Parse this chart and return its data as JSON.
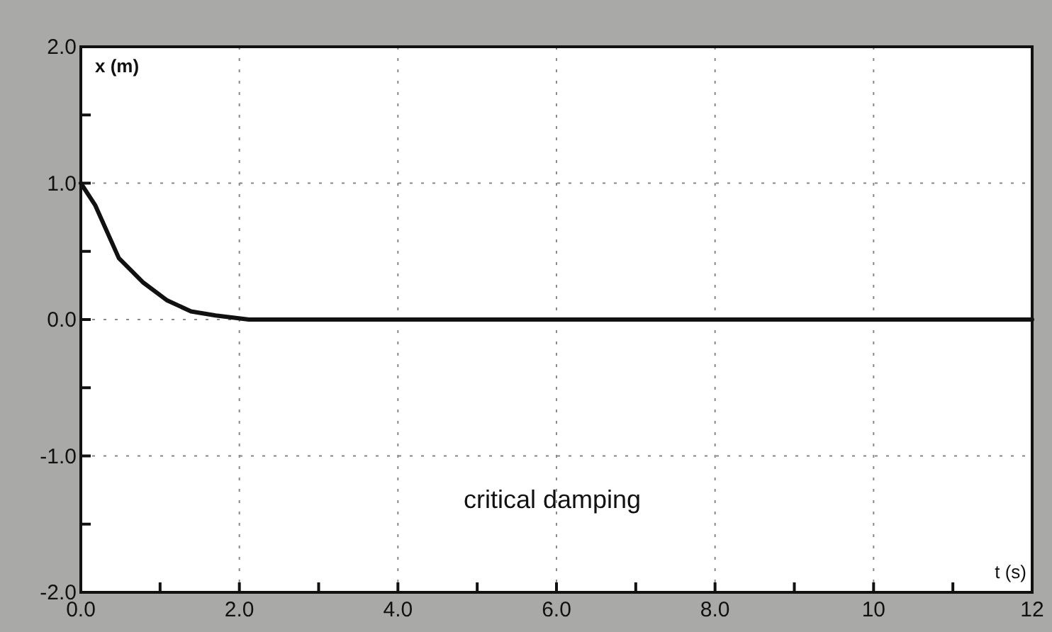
{
  "chart_data": {
    "type": "line",
    "xlabel": "t (s)",
    "ylabel": "x (m)",
    "x": [
      0,
      0.18,
      0.48,
      0.79,
      1.09,
      1.39,
      1.7,
      2.12,
      3,
      4,
      6,
      8,
      10,
      12
    ],
    "series": [
      {
        "color": "#111111",
        "values": [
          1,
          0.84,
          0.45,
          0.27,
          0.14,
          0.06,
          0.03,
          0,
          0,
          0,
          0,
          0,
          0,
          0
        ]
      }
    ],
    "xlim": [
      0,
      12
    ],
    "ylim": [
      -2,
      2
    ],
    "xticks": [
      {
        "value": 0,
        "label": "0.0"
      },
      {
        "value": 1,
        "label": null
      },
      {
        "value": 2,
        "label": "2.0"
      },
      {
        "value": 3,
        "label": null
      },
      {
        "value": 4,
        "label": "4.0"
      },
      {
        "value": 5,
        "label": null
      },
      {
        "value": 6,
        "label": "6.0"
      },
      {
        "value": 7,
        "label": null
      },
      {
        "value": 8,
        "label": "8.0"
      },
      {
        "value": 9,
        "label": null
      },
      10,
      {
        "value": 11,
        "label": null
      },
      12
    ],
    "yticks": [
      {
        "value": -2,
        "label": "-2.0"
      },
      {
        "value": -1.5,
        "label": null
      },
      {
        "value": -1,
        "label": "-1.0"
      },
      {
        "value": -0.5,
        "label": null
      },
      {
        "value": 0,
        "label": "0.0"
      },
      {
        "value": 0.5,
        "label": null
      },
      {
        "value": 1,
        "label": "1.0"
      },
      {
        "value": 1.5,
        "label": null
      },
      {
        "value": 2,
        "label": "2.0"
      }
    ],
    "grid": true,
    "line_style": "solid",
    "marker": "none",
    "annotations": [
      "critical damping"
    ]
  }
}
